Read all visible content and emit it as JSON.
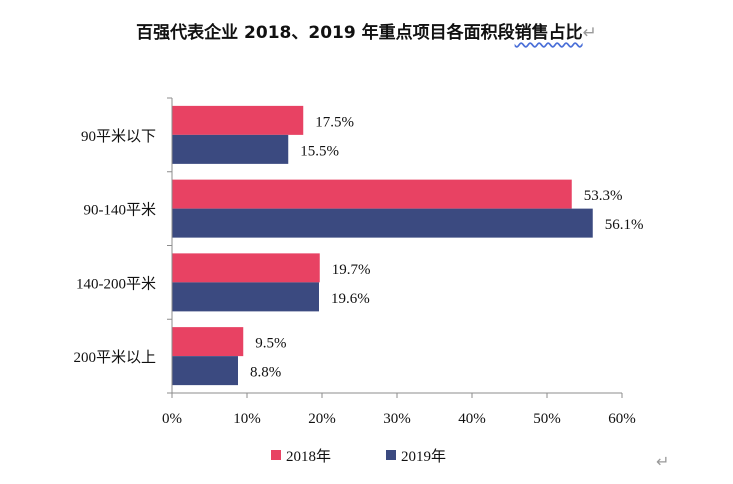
{
  "chart_data": {
    "type": "bar",
    "orientation": "horizontal",
    "title": "百强代表企业 2018、2019 年重点项目各面积段销售占比",
    "categories": [
      "90平米以下",
      "90-140平米",
      "140-200平米",
      "200平米以上"
    ],
    "series": [
      {
        "name": "2018年",
        "values": [
          17.5,
          53.3,
          19.7,
          9.5
        ],
        "labels": [
          "17.5%",
          "53.3%",
          "19.7%",
          "9.5%"
        ],
        "color": "#e84263"
      },
      {
        "name": "2019年",
        "values": [
          15.5,
          56.1,
          19.6,
          8.8
        ],
        "labels": [
          "15.5%",
          "56.1%",
          "19.6%",
          "8.8%"
        ],
        "color": "#3b4a80"
      }
    ],
    "x_ticks": [
      "0%",
      "10%",
      "20%",
      "30%",
      "40%",
      "50%",
      "60%"
    ],
    "xlim": [
      0,
      60
    ],
    "unit": "%",
    "grid": false,
    "legend_position": "bottom"
  },
  "decor": {
    "title_squiggle_part": "销售占比",
    "pilcrow": "↵"
  }
}
